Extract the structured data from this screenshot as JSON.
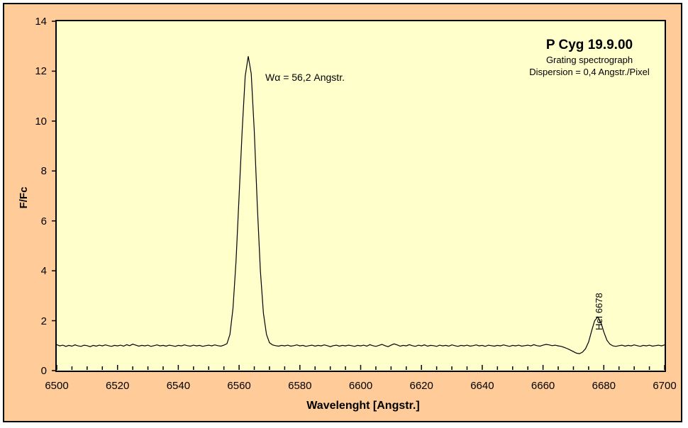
{
  "colors": {
    "canvas_bg": "#FFCC99",
    "plot_bg": "#FFFFCC",
    "line": "#000000",
    "border": "#000000",
    "text": "#000000"
  },
  "chart_data": {
    "type": "line",
    "title": "P Cyg 19.9.00",
    "subtitle_lines": [
      "Grating spectrograph",
      "Dispersion = 0,4 Angstr./Pixel"
    ],
    "xlabel": "Wavelenght [Angstr.]",
    "ylabel": "F/Fc",
    "xlim": [
      6500,
      6700
    ],
    "ylim": [
      0,
      14
    ],
    "grid": false,
    "legend": false,
    "x_major_tick_step": 20,
    "x_minor_tick_step": 5,
    "x_tick_labels": [
      "6500",
      "6520",
      "6540",
      "6560",
      "6580",
      "6600",
      "6620",
      "6640",
      "6660",
      "6680",
      "6700"
    ],
    "y_tick_labels": [
      "0",
      "2",
      "4",
      "6",
      "8",
      "10",
      "12",
      "14"
    ],
    "annotations": [
      {
        "id": "walpha",
        "text": "Wα = 56,2 Angstr.",
        "x": 6568,
        "y": 12.1,
        "rotation": 0
      },
      {
        "id": "hei",
        "text": "HeI 6678",
        "x": 6677,
        "y": 2.9,
        "rotation": -90
      }
    ],
    "series": [
      {
        "name": "spectrum",
        "x_start": 6500,
        "x_step": 1,
        "values": [
          1.04,
          0.99,
          1.02,
          0.97,
          1.01,
          0.98,
          1.03,
          0.99,
          0.97,
          1.02,
          1.0,
          0.96,
          1.01,
          0.98,
          1.02,
          0.99,
          1.03,
          1.0,
          0.97,
          1.01,
          0.99,
          1.02,
          0.98,
          1.04,
          1.0,
          1.06,
          1.02,
          0.98,
          1.01,
          0.99,
          1.02,
          0.97,
          1.0,
          1.03,
          0.99,
          1.01,
          0.98,
          1.02,
          1.0,
          0.97,
          1.01,
          0.99,
          1.03,
          1.0,
          0.98,
          1.02,
          0.99,
          1.01,
          0.97,
          1.0,
          1.02,
          0.99,
          1.03,
          1.0,
          0.98,
          1.02,
          1.08,
          1.45,
          2.5,
          4.4,
          7.0,
          9.6,
          11.8,
          12.6,
          11.9,
          9.6,
          6.6,
          4.0,
          2.3,
          1.45,
          1.12,
          1.03,
          1.0,
          0.98,
          1.01,
          0.99,
          1.02,
          0.98,
          1.0,
          1.03,
          0.99,
          1.01,
          0.97,
          1.0,
          1.02,
          0.98,
          1.01,
          0.99,
          1.03,
          1.0,
          0.96,
          1.0,
          1.02,
          0.98,
          1.01,
          0.99,
          1.02,
          1.0,
          0.97,
          1.01,
          0.99,
          1.02,
          0.98,
          1.04,
          1.0,
          0.97,
          1.01,
          1.05,
          1.0,
          0.96,
          1.02,
          1.07,
          1.03,
          0.98,
          1.01,
          0.99,
          1.04,
          1.0,
          0.97,
          1.02,
          0.99,
          1.03,
          0.98,
          1.01,
          1.0,
          0.97,
          1.02,
          0.99,
          1.01,
          0.98,
          1.03,
          1.0,
          0.97,
          1.01,
          0.99,
          1.02,
          0.98,
          1.0,
          1.03,
          0.99,
          1.01,
          0.97,
          1.02,
          1.0,
          0.98,
          1.01,
          0.99,
          1.03,
          1.0,
          0.97,
          1.01,
          0.99,
          1.02,
          0.98,
          1.0,
          1.02,
          0.99,
          1.04,
          1.0,
          0.98,
          1.02,
          1.05,
          1.03,
          1.0,
          1.02,
          0.99,
          0.97,
          0.93,
          0.88,
          0.82,
          0.76,
          0.7,
          0.68,
          0.74,
          0.88,
          1.15,
          1.6,
          2.0,
          2.15,
          1.95,
          1.55,
          1.22,
          1.06,
          0.99,
          0.97,
          1.0,
          1.02,
          0.98,
          1.01,
          0.99,
          1.03,
          1.0,
          0.97,
          1.01,
          0.99,
          1.02,
          0.98,
          1.0,
          1.02,
          0.99,
          1.03
        ]
      }
    ]
  }
}
